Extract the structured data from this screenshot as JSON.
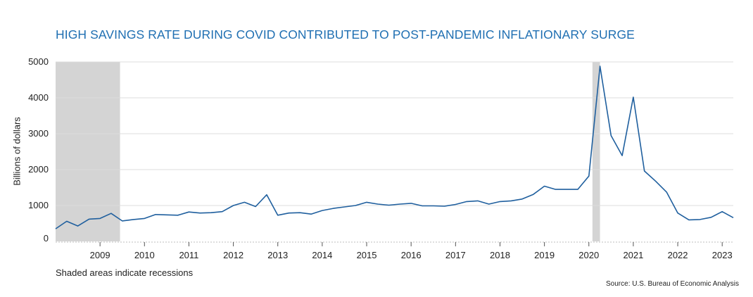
{
  "chart_data": {
    "type": "line",
    "title": "HIGH SAVINGS RATE DURING COVID CONTRIBUTED TO POST-PANDEMIC INFLATIONARY SURGE",
    "ylabel": "Billions of dollars",
    "xlabel": "",
    "ylim": [
      0,
      5000
    ],
    "xlim": [
      2008.0,
      2023.25
    ],
    "yticks": [
      0,
      1000,
      2000,
      3000,
      4000,
      5000
    ],
    "xticks": [
      "2009",
      "2010",
      "2011",
      "2012",
      "2013",
      "2014",
      "2015",
      "2016",
      "2017",
      "2018",
      "2019",
      "2020",
      "2021",
      "2022",
      "2023"
    ],
    "grid": "horizontal",
    "recessions": [
      [
        2008.0,
        2009.45
      ],
      [
        2020.08,
        2020.25
      ]
    ],
    "series": [
      {
        "color": "#1f5f9e",
        "x": [
          2008.0,
          2008.25,
          2008.5,
          2008.75,
          2009.0,
          2009.25,
          2009.5,
          2009.75,
          2010.0,
          2010.25,
          2010.5,
          2010.75,
          2011.0,
          2011.25,
          2011.5,
          2011.75,
          2012.0,
          2012.25,
          2012.5,
          2012.75,
          2013.0,
          2013.25,
          2013.5,
          2013.75,
          2014.0,
          2014.25,
          2014.5,
          2014.75,
          2015.0,
          2015.25,
          2015.5,
          2015.75,
          2016.0,
          2016.25,
          2016.5,
          2016.75,
          2017.0,
          2017.25,
          2017.5,
          2017.75,
          2018.0,
          2018.25,
          2018.5,
          2018.75,
          2019.0,
          2019.25,
          2019.5,
          2019.75,
          2020.0,
          2020.25,
          2020.5,
          2020.75,
          2021.0,
          2021.25,
          2021.5,
          2021.75,
          2022.0,
          2022.25,
          2022.5,
          2022.75,
          2023.0,
          2023.25
        ],
        "values": [
          350,
          560,
          430,
          620,
          640,
          780,
          570,
          610,
          640,
          750,
          740,
          730,
          820,
          790,
          800,
          830,
          1000,
          1090,
          970,
          1300,
          730,
          790,
          800,
          760,
          860,
          920,
          960,
          1000,
          1090,
          1040,
          1010,
          1040,
          1060,
          990,
          990,
          980,
          1030,
          1110,
          1130,
          1040,
          1110,
          1130,
          1180,
          1310,
          1540,
          1450,
          1450,
          1450,
          1820,
          4880,
          2950,
          2390,
          4020,
          1960,
          1680,
          1370,
          790,
          600,
          610,
          670,
          830,
          660
        ]
      }
    ]
  },
  "footnote": "Shaded areas indicate recessions",
  "source": "Source: U.S. Bureau of Economic Analysis",
  "colors": {
    "title": "#1f6fb2",
    "line": "#1f5f9e",
    "recession": "#d4d4d4",
    "grid": "#dcdcdc"
  }
}
